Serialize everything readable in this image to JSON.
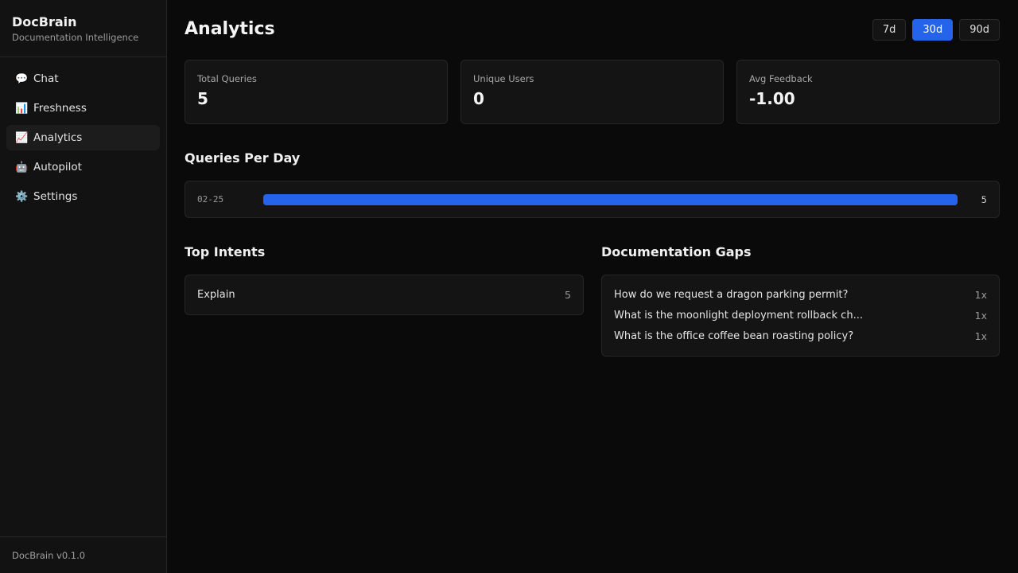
{
  "sidebar": {
    "title": "DocBrain",
    "subtitle": "Documentation Intelligence",
    "version": "DocBrain v0.1.0",
    "items": [
      {
        "label": "Chat",
        "icon": "💬"
      },
      {
        "label": "Freshness",
        "icon": "📊"
      },
      {
        "label": "Analytics",
        "icon": "📈",
        "active": true
      },
      {
        "label": "Autopilot",
        "icon": "🤖"
      },
      {
        "label": "Settings",
        "icon": "⚙️"
      }
    ]
  },
  "header": {
    "title": "Analytics",
    "ranges": [
      "7d",
      "30d",
      "90d"
    ],
    "selected_range": "30d"
  },
  "stats": [
    {
      "label": "Total Queries",
      "value": "5"
    },
    {
      "label": "Unique Users",
      "value": "0"
    },
    {
      "label": "Avg Feedback",
      "value": "-1.00"
    }
  ],
  "queries_per_day": {
    "title": "Queries Per Day",
    "rows": [
      {
        "date": "02-25",
        "count": 5,
        "fraction": 1.0
      }
    ]
  },
  "top_intents": {
    "title": "Top Intents",
    "rows": [
      {
        "label": "Explain",
        "count": "5"
      }
    ]
  },
  "doc_gaps": {
    "title": "Documentation Gaps",
    "rows": [
      {
        "label": "How do we request a dragon parking permit?",
        "count": "1x"
      },
      {
        "label": "What is the moonlight deployment rollback ch...",
        "count": "1x"
      },
      {
        "label": "What is the office coffee bean roasting policy?",
        "count": "1x"
      }
    ]
  },
  "colors": {
    "accent": "#2563eb",
    "background": "#0a0a0a"
  }
}
